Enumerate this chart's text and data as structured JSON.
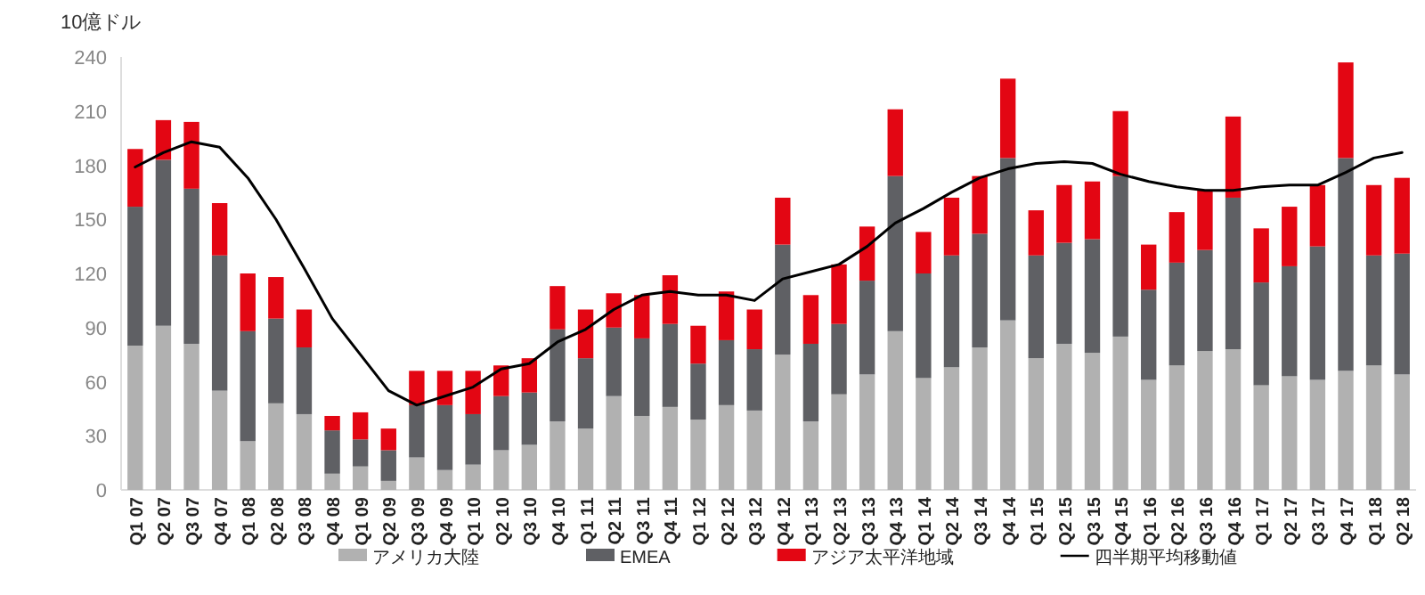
{
  "chart_data": {
    "type": "bar",
    "stacked": true,
    "ylabel": "10億ドル",
    "legend": "bottom",
    "ylim": [
      0,
      240
    ],
    "yticks": [
      0,
      30,
      60,
      90,
      120,
      150,
      180,
      210,
      240
    ],
    "categories": [
      "Q1 07",
      "Q2 07",
      "Q3 07",
      "Q4 07",
      "Q1 08",
      "Q2 08",
      "Q3 08",
      "Q4 08",
      "Q1 09",
      "Q2 09",
      "Q3 09",
      "Q4 09",
      "Q1 10",
      "Q2 10",
      "Q3 10",
      "Q4 10",
      "Q1 11",
      "Q2 11",
      "Q3 11",
      "Q4 11",
      "Q1 12",
      "Q2 12",
      "Q3 12",
      "Q4 12",
      "Q1 13",
      "Q2 13",
      "Q3 13",
      "Q4 13",
      "Q1 14",
      "Q2 14",
      "Q3 14",
      "Q4 14",
      "Q1 15",
      "Q2 15",
      "Q3 15",
      "Q4 15",
      "Q1 16",
      "Q2 16",
      "Q3 16",
      "Q4 16",
      "Q1 17",
      "Q2 17",
      "Q3 17",
      "Q4 17",
      "Q1 18",
      "Q2 18"
    ],
    "series": [
      {
        "name": "アメリカ大陸",
        "color": "#b1b1b1",
        "values": [
          80,
          91,
          81,
          55,
          27,
          48,
          42,
          9,
          13,
          5,
          18,
          11,
          14,
          22,
          25,
          38,
          34,
          52,
          41,
          46,
          39,
          47,
          44,
          75,
          38,
          53,
          64,
          88,
          62,
          68,
          79,
          94,
          73,
          81,
          76,
          85,
          61,
          69,
          77,
          78,
          58,
          63,
          61,
          66,
          69,
          64
        ]
      },
      {
        "name": "EMEA",
        "color": "#5f6064",
        "values": [
          77,
          92,
          86,
          75,
          61,
          47,
          37,
          24,
          15,
          17,
          29,
          36,
          28,
          30,
          29,
          51,
          39,
          38,
          43,
          46,
          31,
          36,
          34,
          61,
          43,
          39,
          52,
          86,
          58,
          62,
          63,
          90,
          57,
          56,
          63,
          89,
          50,
          57,
          56,
          84,
          57,
          61,
          74,
          118,
          61,
          67
        ]
      },
      {
        "name": "アジア太平洋地域",
        "color": "#e30613",
        "values": [
          32,
          22,
          37,
          29,
          32,
          23,
          21,
          8,
          15,
          12,
          19,
          19,
          24,
          17,
          19,
          24,
          27,
          19,
          24,
          27,
          21,
          27,
          22,
          26,
          27,
          33,
          30,
          37,
          23,
          32,
          32,
          44,
          25,
          32,
          32,
          36,
          25,
          28,
          33,
          45,
          30,
          33,
          34,
          53,
          39,
          42
        ]
      },
      {
        "name": "四半期平均移動値",
        "type": "line",
        "color": "#000000",
        "values": [
          179,
          187,
          193,
          190,
          173,
          150,
          123,
          95,
          75,
          55,
          47,
          52,
          57,
          67,
          70,
          82,
          89,
          100,
          108,
          110,
          108,
          108,
          105,
          117,
          121,
          125,
          135,
          148,
          156,
          165,
          173,
          178,
          181,
          182,
          181,
          175,
          171,
          168,
          166,
          166,
          168,
          169,
          169,
          176,
          184,
          187
        ]
      }
    ]
  }
}
